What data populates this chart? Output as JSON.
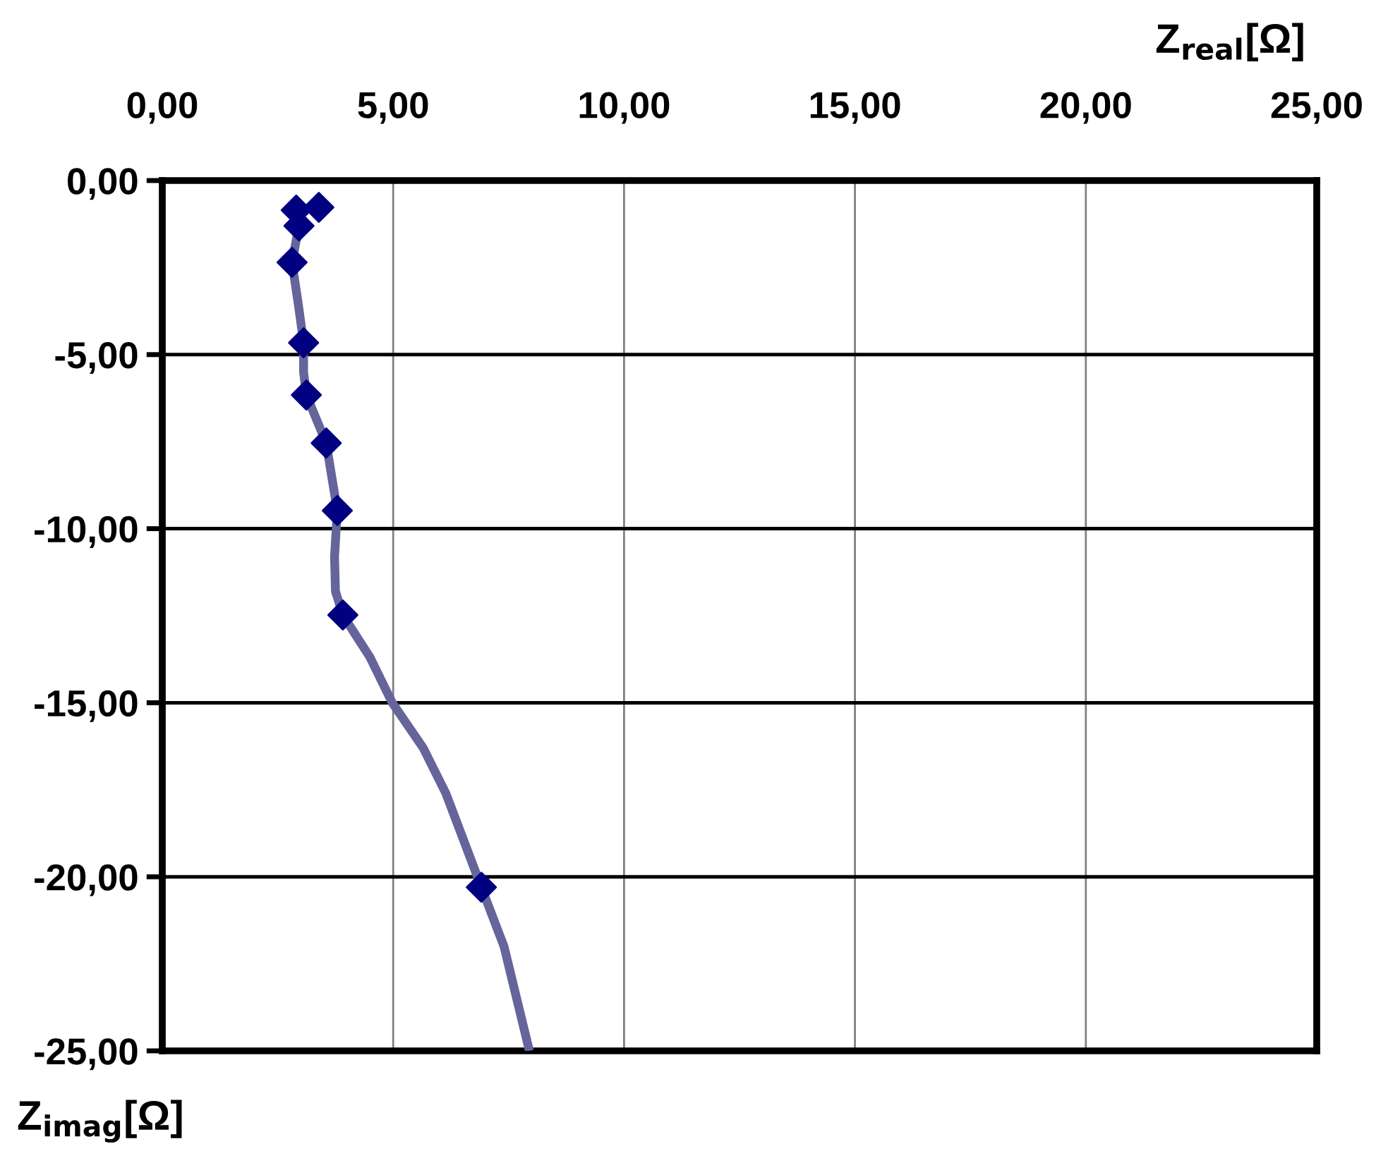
{
  "chart_data": {
    "type": "scatter",
    "xlabel": "Z$_{real}$[Ω]",
    "ylabel": "Z$_{imag}$[Ω]",
    "xlim": [
      0,
      25
    ],
    "ylim": [
      -25,
      0
    ],
    "xticks": [
      {
        "value": 0,
        "label": "0,00"
      },
      {
        "value": 5,
        "label": "5,00"
      },
      {
        "value": 10,
        "label": "10,00"
      },
      {
        "value": 15,
        "label": "15,00"
      },
      {
        "value": 20,
        "label": "20,00"
      },
      {
        "value": 25,
        "label": "25,00"
      }
    ],
    "yticks": [
      {
        "value": 0,
        "label": "0,00"
      },
      {
        "value": -5,
        "label": "-5,00"
      },
      {
        "value": -10,
        "label": "-10,00"
      },
      {
        "value": -15,
        "label": "-15,00"
      },
      {
        "value": -20,
        "label": "-20,00"
      },
      {
        "value": -25,
        "label": "-25,00"
      }
    ],
    "grid": true,
    "legend": false,
    "series": [
      {
        "type": "line",
        "color": "#65659b",
        "marker": "none",
        "x": [
          2.9,
          2.96,
          2.81,
          2.95,
          3.06,
          3.06,
          3.12,
          3.55,
          3.79,
          3.73,
          3.75,
          3.91,
          4.5,
          4.98,
          5.65,
          6.14,
          6.91,
          7.4,
          7.95
        ],
        "values": [
          -0.85,
          -1.3,
          -2.35,
          -3.6,
          -4.66,
          -5.5,
          -6.16,
          -7.54,
          -9.48,
          -10.8,
          -11.8,
          -12.48,
          -13.7,
          -15.0,
          -16.3,
          -17.6,
          -20.3,
          -22.0,
          -25.0
        ]
      },
      {
        "color": "#000080",
        "marker": "diamond",
        "x": [
          2.9,
          3.39,
          2.96,
          2.81,
          3.06,
          3.12,
          3.55,
          3.79,
          3.91,
          6.91
        ],
        "values": [
          -0.85,
          -0.77,
          -1.3,
          -2.35,
          -4.66,
          -6.16,
          -7.54,
          -9.48,
          -12.48,
          -20.3
        ]
      }
    ]
  }
}
